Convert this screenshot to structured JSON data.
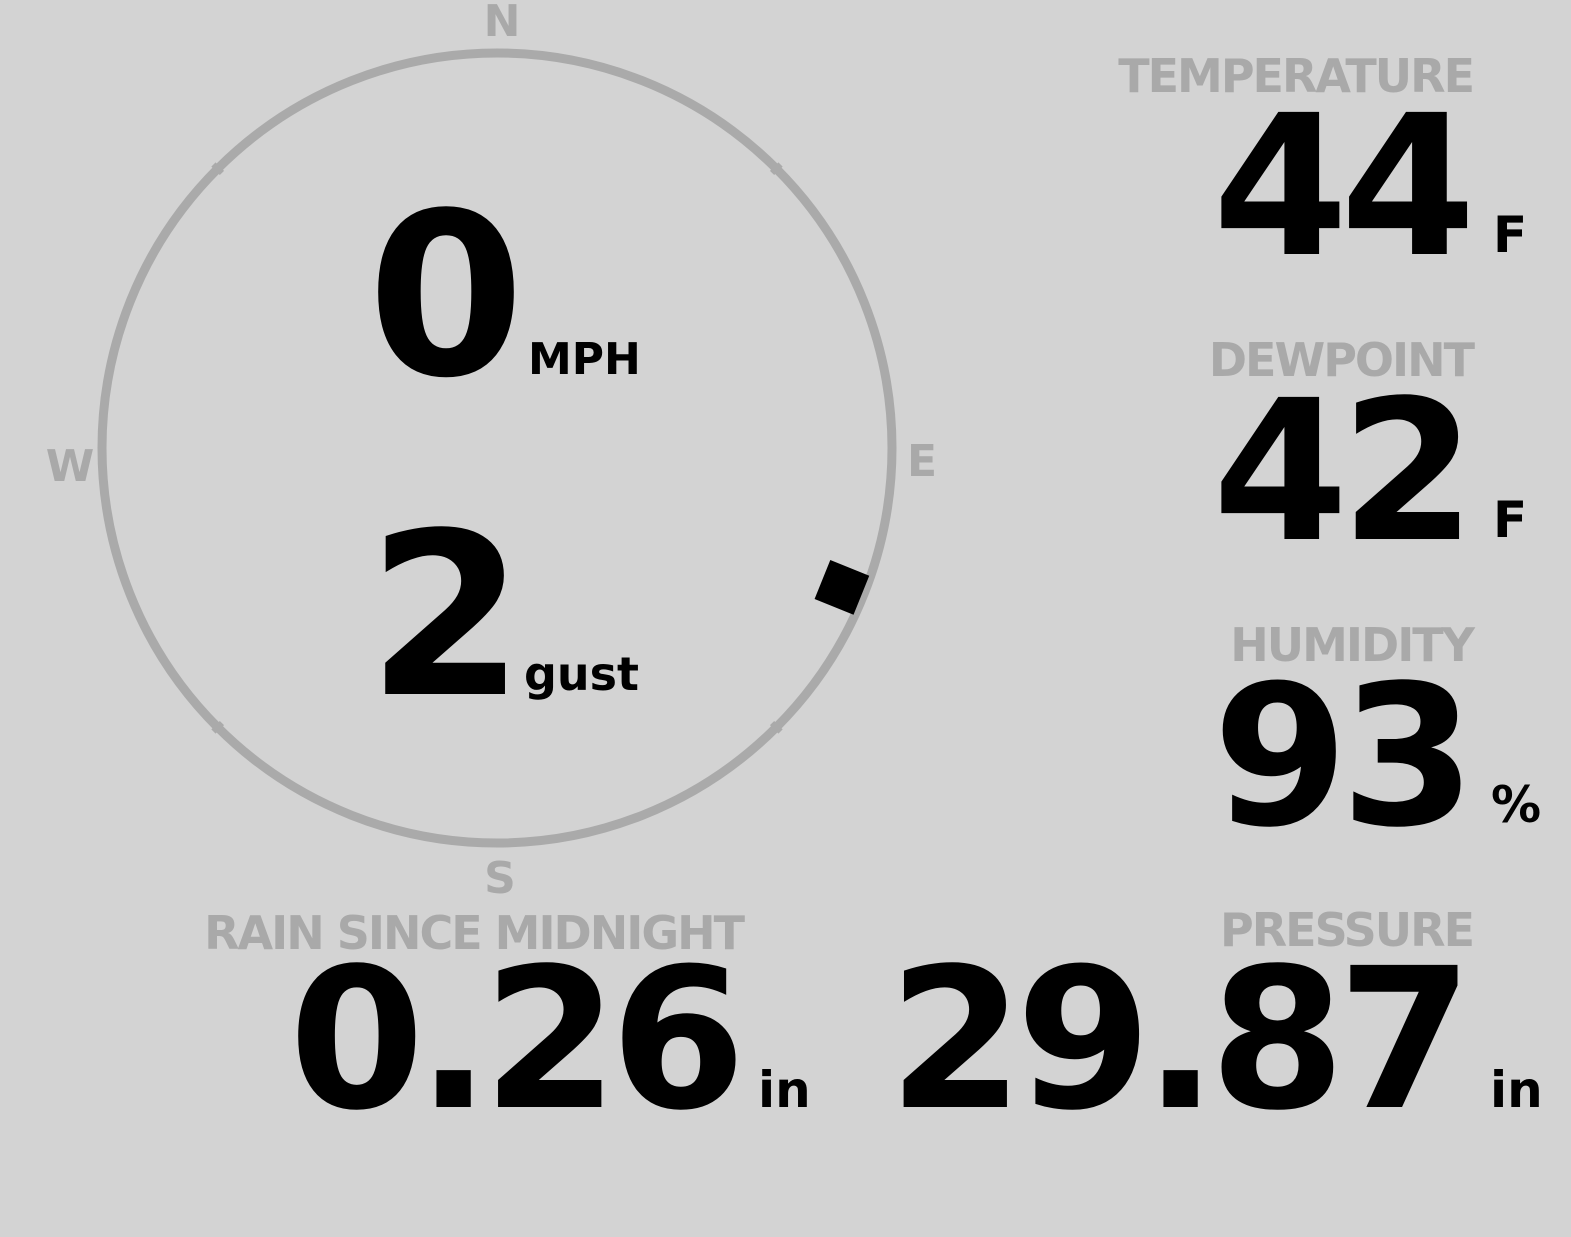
{
  "wind": {
    "speed": "0",
    "speed_unit": "MPH",
    "gust": "2",
    "gust_unit": "gust",
    "direction_deg": 112,
    "compass": {
      "n": "N",
      "e": "E",
      "s": "S",
      "w": "W"
    },
    "ring_color": "#aaaaaa",
    "marker_color": "#000000"
  },
  "temperature": {
    "label": "TEMPERATURE",
    "value": "44",
    "unit": "F"
  },
  "dewpoint": {
    "label": "DEWPOINT",
    "value": "42",
    "unit": "F"
  },
  "humidity": {
    "label": "HUMIDITY",
    "value": "93",
    "unit": "%"
  },
  "pressure": {
    "label": "PRESSURE",
    "value": "29.87",
    "unit": "in"
  },
  "rain": {
    "label": "RAIN SINCE MIDNIGHT",
    "value": "0.26",
    "unit": "in"
  },
  "colors": {
    "background": "#d3d3d3",
    "label": "#a9a9a9",
    "value": "#000000"
  }
}
